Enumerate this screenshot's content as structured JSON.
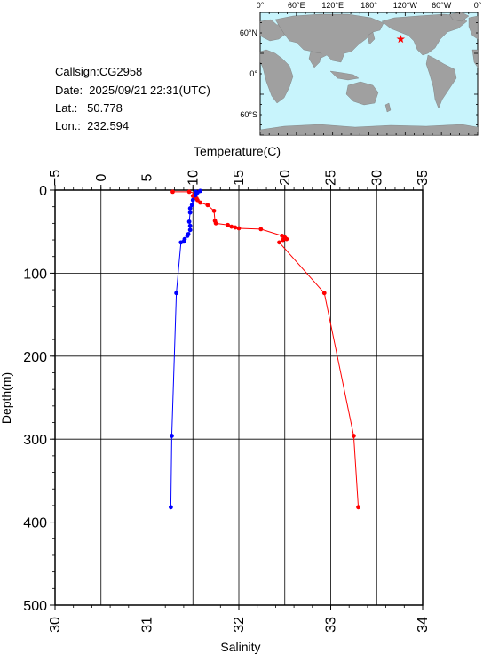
{
  "station": {
    "callsign": "Callsign:CG2958",
    "date": "Date:  2025/09/21 22:31(UTC)",
    "lat": "Lat.:   50.778",
    "lon": "Lon.:  232.594"
  },
  "map": {
    "lon_labels": [
      "0°",
      "60°E",
      "120°E",
      "180°",
      "120°W",
      "60°W",
      "0°"
    ],
    "lat_labels": [
      "60°N",
      "0°",
      "60°S"
    ],
    "station_lon": 232.594,
    "station_lat": 50.778,
    "ocean_color": "#c8f4fc",
    "land_color": "#a0a0a0",
    "marker_color": "#ff0000",
    "marker_icon": "star-icon"
  },
  "chart_data": {
    "type": "line",
    "ylabel": "Depth(m)",
    "xlabel_top": "Temperature(C)",
    "xlabel_bottom": "Salinity",
    "ylim": [
      500,
      0
    ],
    "y_ticks": [
      "0",
      "100",
      "200",
      "300",
      "400",
      "500"
    ],
    "temperature_axis": {
      "range": [
        -5,
        35
      ],
      "ticks": [
        "−5",
        "0",
        "5",
        "10",
        "15",
        "20",
        "25",
        "30",
        "35"
      ]
    },
    "salinity_axis": {
      "range": [
        30,
        34
      ],
      "ticks": [
        "30",
        "31",
        "32",
        "33",
        "34"
      ]
    },
    "series": [
      {
        "name": "Temperature",
        "color": "#ff0000",
        "axis": "top",
        "points": [
          [
            7.8,
            2
          ],
          [
            9.6,
            2
          ],
          [
            10.3,
            4
          ],
          [
            10.0,
            7
          ],
          [
            10.4,
            10
          ],
          [
            10.5,
            12
          ],
          [
            10.8,
            15
          ],
          [
            11.6,
            18
          ],
          [
            12.3,
            25
          ],
          [
            12.4,
            37
          ],
          [
            12.5,
            40
          ],
          [
            13.8,
            42
          ],
          [
            14.2,
            44
          ],
          [
            14.6,
            45
          ],
          [
            15.0,
            46
          ],
          [
            17.4,
            47
          ],
          [
            19.7,
            55
          ],
          [
            20.0,
            57
          ],
          [
            19.8,
            60
          ],
          [
            20.2,
            59
          ],
          [
            19.4,
            63
          ],
          [
            24.3,
            124
          ],
          [
            27.5,
            296
          ],
          [
            28.0,
            382
          ]
        ]
      },
      {
        "name": "Salinity",
        "color": "#0000ff",
        "axis": "bottom",
        "points": [
          [
            31.53,
            2
          ],
          [
            31.58,
            1
          ],
          [
            31.55,
            3
          ],
          [
            31.53,
            6
          ],
          [
            31.5,
            12
          ],
          [
            31.49,
            18
          ],
          [
            31.47,
            22
          ],
          [
            31.47,
            27
          ],
          [
            31.46,
            38
          ],
          [
            31.47,
            43
          ],
          [
            31.47,
            48
          ],
          [
            31.45,
            53
          ],
          [
            31.44,
            55
          ],
          [
            31.41,
            59
          ],
          [
            31.4,
            62
          ],
          [
            31.37,
            63
          ],
          [
            31.32,
            124
          ],
          [
            31.27,
            296
          ],
          [
            31.26,
            382
          ]
        ]
      }
    ]
  }
}
